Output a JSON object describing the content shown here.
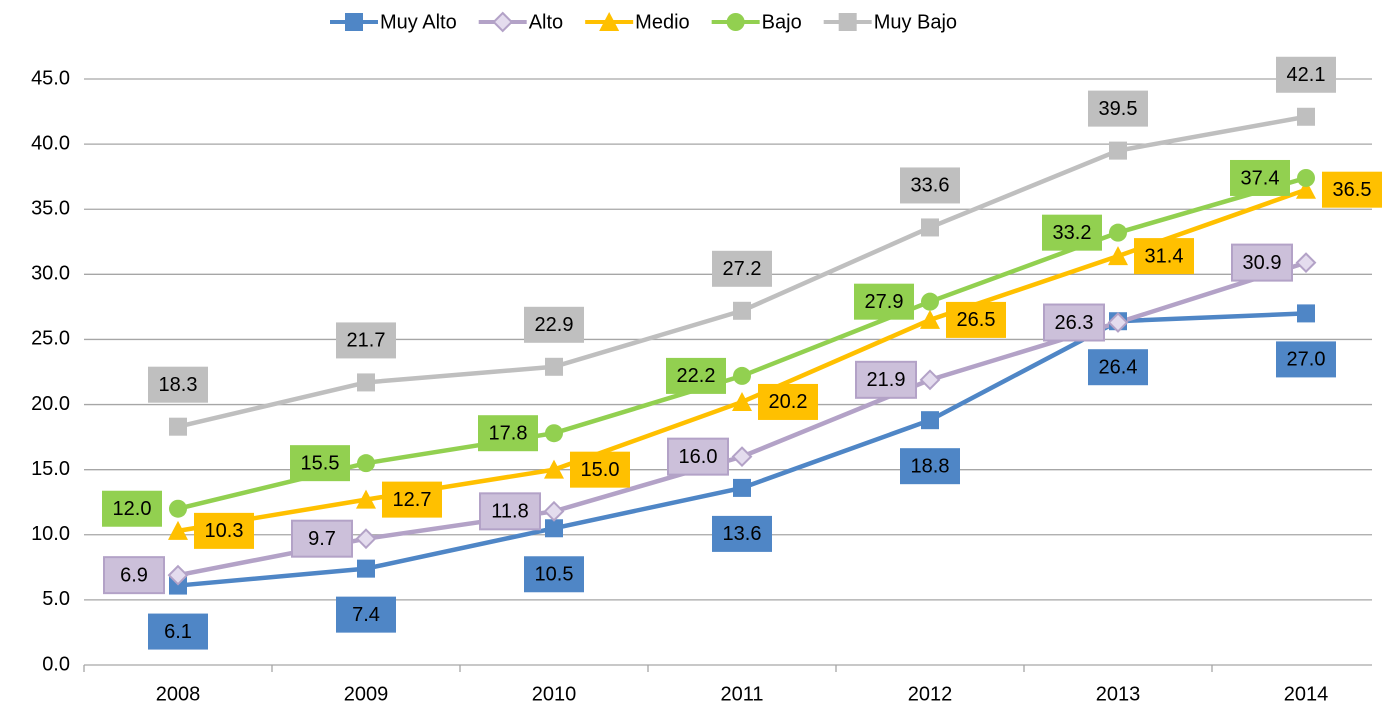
{
  "chart_data": {
    "type": "line",
    "categories": [
      "2008",
      "2009",
      "2010",
      "2011",
      "2012",
      "2013",
      "2014"
    ],
    "series": [
      {
        "name": "Muy Alto",
        "color": "#4f86c6",
        "marker": "square",
        "values": [
          6.1,
          7.4,
          10.5,
          13.6,
          18.8,
          26.4,
          27.0
        ],
        "value_labels": [
          "6.1",
          "7.4",
          "10.5",
          "13.6",
          "18.8",
          "26.4",
          "27.0"
        ]
      },
      {
        "name": "Alto",
        "color": "#b3a2c7",
        "marker": "diamond",
        "values": [
          6.9,
          9.7,
          11.8,
          16.0,
          21.9,
          26.3,
          30.9
        ],
        "value_labels": [
          "6.9",
          "9.7",
          "11.8",
          "16.0",
          "21.9",
          "26.3",
          "30.9"
        ]
      },
      {
        "name": "Medio",
        "color": "#ffc000",
        "marker": "triangle",
        "values": [
          10.3,
          12.7,
          15.0,
          20.2,
          26.5,
          31.4,
          36.5
        ],
        "value_labels": [
          "10.3",
          "12.7",
          "15.0",
          "20.2",
          "26.5",
          "31.4",
          "36.5"
        ]
      },
      {
        "name": "Bajo",
        "color": "#92d050",
        "marker": "circle",
        "values": [
          12.0,
          15.5,
          17.8,
          22.2,
          27.9,
          33.2,
          37.4
        ],
        "value_labels": [
          "12.0",
          "15.5",
          "17.8",
          "22.2",
          "27.9",
          "33.2",
          "37.4"
        ]
      },
      {
        "name": "Muy Bajo",
        "color": "#bfbfbf",
        "marker": "square",
        "values": [
          18.3,
          21.7,
          22.9,
          27.2,
          33.6,
          39.5,
          42.1
        ],
        "value_labels": [
          "18.3",
          "21.7",
          "22.9",
          "27.2",
          "33.6",
          "39.5",
          "42.1"
        ]
      }
    ],
    "ylim": [
      0,
      45
    ],
    "yticks": [
      {
        "value": 0,
        "label": "0.0"
      },
      {
        "value": 5,
        "label": "5.0"
      },
      {
        "value": 10,
        "label": "10.0"
      },
      {
        "value": 15,
        "label": "15.0"
      },
      {
        "value": 20,
        "label": "20.0"
      },
      {
        "value": 25,
        "label": "25.0"
      },
      {
        "value": 30,
        "label": "30.0"
      },
      {
        "value": 35,
        "label": "35.0"
      },
      {
        "value": 40,
        "label": "40.0"
      },
      {
        "value": 45,
        "label": "45.0"
      }
    ],
    "grid": true,
    "legend": "top"
  }
}
